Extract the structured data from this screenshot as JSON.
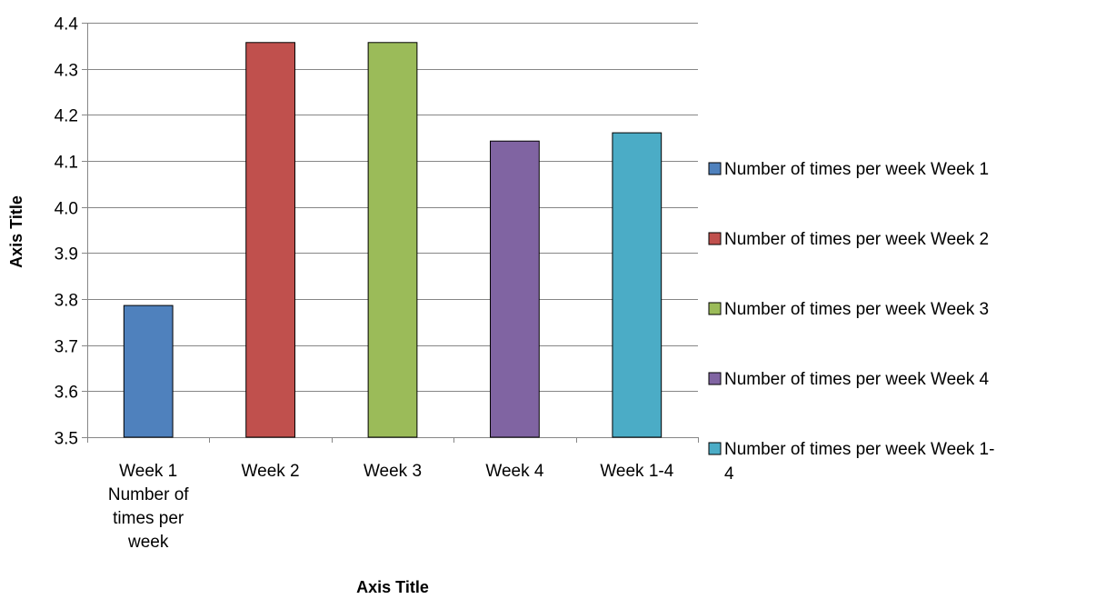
{
  "chart_data": {
    "type": "bar",
    "categories": [
      [
        "Week 1",
        "Number of",
        "times per",
        "week"
      ],
      [
        "Week 2"
      ],
      [
        "Week 3"
      ],
      [
        "Week 4"
      ],
      [
        "Week 1-4"
      ]
    ],
    "values": [
      3.786,
      4.357,
      4.357,
      4.143,
      4.161
    ],
    "colors": [
      "#4F81BD",
      "#C0504D",
      "#9BBB59",
      "#8064A2",
      "#4BACC6"
    ],
    "xlabel": "Axis Title",
    "ylabel": "Axis Title",
    "ylim": [
      3.5,
      4.4
    ],
    "yticks": [
      "3.5",
      "3.6",
      "3.7",
      "3.8",
      "3.9",
      "4.0",
      "4.1",
      "4.2",
      "4.3",
      "4.4"
    ],
    "grid": true,
    "legend_position": "right",
    "legend": [
      [
        "Number of times per week Week 1"
      ],
      [
        "Number of times per week Week 2"
      ],
      [
        "Number of times per week Week 3"
      ],
      [
        "Number of times per week Week 4"
      ],
      [
        "Number of times per week Week 1-",
        "4"
      ]
    ]
  }
}
